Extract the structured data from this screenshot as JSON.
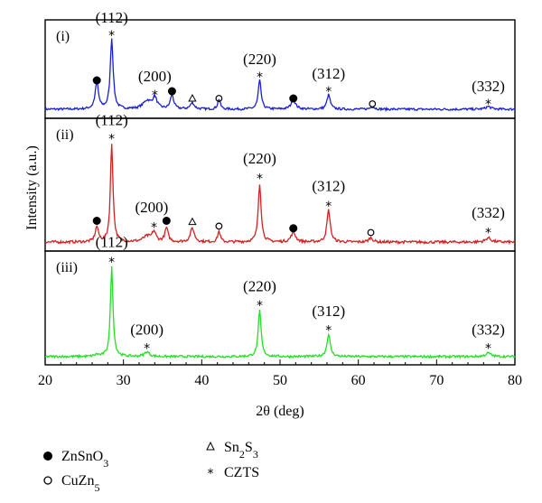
{
  "chart_data": {
    "type": "line",
    "xlabel": "2θ (deg)",
    "ylabel": "Intensity (a.u.)",
    "xlim": [
      20,
      80
    ],
    "x_ticks": [
      "20",
      "30",
      "40",
      "50",
      "60",
      "70",
      "80"
    ],
    "grid": false,
    "legend_placement": "bottom",
    "legend": [
      {
        "symbol": "filled-circle",
        "label": "ZnSnO",
        "sub": "3",
        "label2": ""
      },
      {
        "symbol": "open-circle",
        "label": "CuZn",
        "sub": "5",
        "label2": ""
      },
      {
        "symbol": "open-triangle",
        "label": "Sn",
        "sub": "2",
        "label2": "S",
        "sub2": "3"
      },
      {
        "symbol": "star",
        "label": "CZTS",
        "sub": "",
        "label2": ""
      }
    ],
    "series": [
      {
        "name": "(i)",
        "color": "#1a1fd6",
        "baseline": 0.06,
        "peaks": [
          [
            26.6,
            0.3,
            0.25
          ],
          [
            28.5,
            0.78,
            0.22
          ],
          [
            33.0,
            0.09,
            0.6
          ],
          [
            34.0,
            0.12,
            0.35
          ],
          [
            36.2,
            0.16,
            0.25
          ],
          [
            38.8,
            0.07,
            0.3
          ],
          [
            42.2,
            0.11,
            0.2
          ],
          [
            47.4,
            0.32,
            0.22
          ],
          [
            51.7,
            0.1,
            0.35
          ],
          [
            56.2,
            0.16,
            0.25
          ],
          [
            61.8,
            0.03,
            0.3
          ],
          [
            76.6,
            0.03,
            0.4
          ]
        ],
        "markers": [
          {
            "x": 26.6,
            "m": "filled-circle",
            "y": 0.38
          },
          {
            "x": 34.0,
            "m": "star",
            "y": 0.22
          },
          {
            "x": 36.2,
            "m": "filled-circle",
            "y": 0.26
          },
          {
            "x": 38.8,
            "m": "open-triangle",
            "y": 0.18
          },
          {
            "x": 42.2,
            "m": "open-circle",
            "y": 0.18
          },
          {
            "x": 47.4,
            "m": "star",
            "y": 0.42
          },
          {
            "x": 51.7,
            "m": "filled-circle",
            "y": 0.18
          },
          {
            "x": 56.2,
            "m": "star",
            "y": 0.26
          },
          {
            "x": 61.8,
            "m": "open-circle",
            "y": 0.12
          },
          {
            "x": 76.6,
            "m": "star",
            "y": 0.12
          },
          {
            "x": 28.5,
            "m": "star",
            "y": 0.88
          }
        ],
        "labels": [
          {
            "text": "(112)",
            "x": 28.5,
            "y": 1.02
          },
          {
            "text": "(200)",
            "x": 34.0,
            "y": 0.37
          },
          {
            "text": "(220)",
            "x": 47.4,
            "y": 0.56
          },
          {
            "text": "(312)",
            "x": 56.2,
            "y": 0.4
          },
          {
            "text": "(332)",
            "x": 76.6,
            "y": 0.26
          }
        ]
      },
      {
        "name": "(ii)",
        "color": "#d42020",
        "baseline": 0.05,
        "peaks": [
          [
            26.6,
            0.14,
            0.25
          ],
          [
            28.5,
            0.92,
            0.2
          ],
          [
            33.0,
            0.05,
            0.6
          ],
          [
            33.9,
            0.09,
            0.3
          ],
          [
            35.5,
            0.13,
            0.25
          ],
          [
            38.8,
            0.13,
            0.3
          ],
          [
            42.2,
            0.1,
            0.2
          ],
          [
            47.4,
            0.55,
            0.22
          ],
          [
            51.7,
            0.09,
            0.35
          ],
          [
            56.2,
            0.3,
            0.25
          ],
          [
            61.6,
            0.04,
            0.3
          ],
          [
            76.6,
            0.04,
            0.4
          ]
        ],
        "markers": [
          {
            "x": 26.6,
            "m": "filled-circle",
            "y": 0.25
          },
          {
            "x": 28.5,
            "m": "star",
            "y": 1.02
          },
          {
            "x": 33.9,
            "m": "star",
            "y": 0.19
          },
          {
            "x": 35.5,
            "m": "filled-circle",
            "y": 0.25
          },
          {
            "x": 38.8,
            "m": "open-triangle",
            "y": 0.24
          },
          {
            "x": 42.2,
            "m": "open-circle",
            "y": 0.2
          },
          {
            "x": 47.4,
            "m": "star",
            "y": 0.65
          },
          {
            "x": 51.7,
            "m": "filled-circle",
            "y": 0.18
          },
          {
            "x": 56.2,
            "m": "star",
            "y": 0.39
          },
          {
            "x": 61.6,
            "m": "open-circle",
            "y": 0.14
          },
          {
            "x": 76.6,
            "m": "star",
            "y": 0.14
          }
        ],
        "labels": [
          {
            "text": "(112)",
            "x": 28.5,
            "y": 1.15
          },
          {
            "text": "(200)",
            "x": 33.6,
            "y": 0.33
          },
          {
            "text": "(220)",
            "x": 47.4,
            "y": 0.79
          },
          {
            "text": "(312)",
            "x": 56.2,
            "y": 0.53
          },
          {
            "text": "(332)",
            "x": 76.6,
            "y": 0.28
          }
        ]
      },
      {
        "name": "(iii)",
        "color": "#22e022",
        "baseline": 0.05,
        "peaks": [
          [
            26.6,
            0.02,
            0.3
          ],
          [
            28.5,
            0.97,
            0.2
          ],
          [
            33.0,
            0.05,
            0.4
          ],
          [
            47.4,
            0.5,
            0.22
          ],
          [
            56.2,
            0.24,
            0.25
          ],
          [
            76.6,
            0.04,
            0.4
          ]
        ],
        "markers": [
          {
            "x": 28.5,
            "m": "star",
            "y": 1.08
          },
          {
            "x": 33.0,
            "m": "star",
            "y": 0.14
          },
          {
            "x": 47.4,
            "m": "star",
            "y": 0.61
          },
          {
            "x": 56.2,
            "m": "star",
            "y": 0.34
          },
          {
            "x": 76.6,
            "m": "star",
            "y": 0.14
          }
        ],
        "labels": [
          {
            "text": "(112)",
            "x": 28.5,
            "y": 1.24
          },
          {
            "text": "(200)",
            "x": 33.0,
            "y": 0.29
          },
          {
            "text": "(220)",
            "x": 47.4,
            "y": 0.76
          },
          {
            "text": "(312)",
            "x": 56.2,
            "y": 0.49
          },
          {
            "text": "(332)",
            "x": 76.6,
            "y": 0.29
          }
        ]
      }
    ]
  }
}
